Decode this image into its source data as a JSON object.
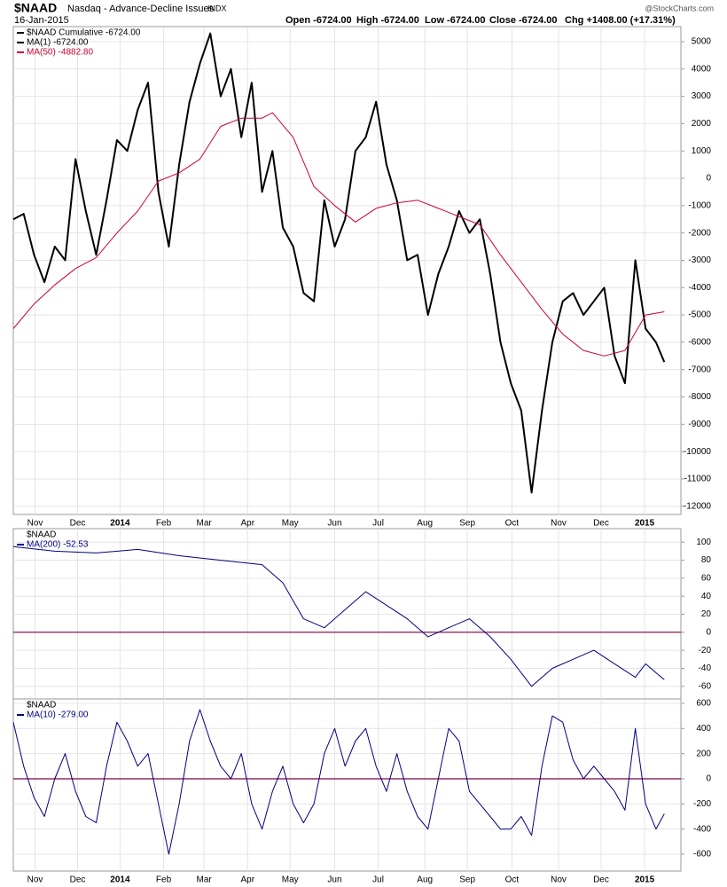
{
  "header": {
    "symbol": "$NAAD",
    "name": "Nasdaq - Advance-Decline Issues",
    "exchange": "INDX",
    "date": "16-Jan-2015",
    "open": "Open -6724.00",
    "high": "High -6724.00",
    "low": "Low -6724.00",
    "close": "Close -6724.00",
    "chg": "Chg +1408.00 (+17.31%)",
    "source": "@StockCharts.com"
  },
  "chart_data": [
    {
      "type": "line",
      "legend_title": "$NAAD Cumulative -6724.00",
      "xlim": [
        0,
        64.4
      ],
      "ylim": [
        -12300,
        5550
      ],
      "xticks": [
        {
          "value": 2.1,
          "label": "Nov"
        },
        {
          "value": 6.2,
          "label": "Dec"
        },
        {
          "value": 10.3,
          "label": "2014"
        },
        {
          "value": 14.5,
          "label": "Feb"
        },
        {
          "value": 18.4,
          "label": "Mar"
        },
        {
          "value": 22.6,
          "label": "Apr"
        },
        {
          "value": 26.7,
          "label": "May"
        },
        {
          "value": 31.0,
          "label": "Jun"
        },
        {
          "value": 35.2,
          "label": "Jul"
        },
        {
          "value": 39.7,
          "label": "Aug"
        },
        {
          "value": 43.8,
          "label": "Sep"
        },
        {
          "value": 48.1,
          "label": "Oct"
        },
        {
          "value": 52.6,
          "label": "Nov"
        },
        {
          "value": 56.7,
          "label": "Dec"
        },
        {
          "value": 60.9,
          "label": "2015"
        }
      ],
      "yticks": [
        5000,
        4000,
        3000,
        2000,
        1000,
        0,
        -1000,
        -2000,
        -3000,
        -4000,
        -5000,
        -6000,
        -7000,
        -8000,
        -9000,
        -10000,
        -11000,
        -12000
      ],
      "grid": true,
      "series": [
        {
          "name": "MA(1) -6724.00",
          "color": "#000000",
          "width": 2,
          "x": [
            0,
            1,
            2,
            3,
            4,
            5,
            6,
            7,
            8,
            9,
            10,
            11,
            12,
            13,
            14,
            15,
            16,
            17,
            18,
            19,
            20,
            21,
            22,
            23,
            24,
            25,
            26,
            27,
            28,
            29,
            30,
            31,
            32,
            33,
            34,
            35,
            36,
            37,
            38,
            39,
            40,
            41,
            42,
            43,
            44,
            45,
            46,
            47,
            48,
            49,
            50,
            51,
            52,
            53,
            54,
            55,
            56,
            57,
            58,
            59,
            60,
            61,
            62,
            62.8
          ],
          "values": [
            -1500,
            -1300,
            -2800,
            -3800,
            -2500,
            -3000,
            700,
            -1200,
            -2800,
            -800,
            1400,
            1000,
            2500,
            3500,
            -500,
            -2500,
            500,
            2800,
            4200,
            5300,
            3000,
            4000,
            1500,
            3500,
            -500,
            1000,
            -1800,
            -2500,
            -4200,
            -4500,
            -800,
            -2500,
            -1500,
            1000,
            1500,
            2800,
            500,
            -800,
            -3000,
            -2800,
            -5000,
            -3500,
            -2500,
            -1200,
            -2000,
            -1500,
            -3500,
            -6000,
            -7500,
            -8500,
            -11500,
            -8500,
            -6000,
            -4500,
            -4200,
            -5000,
            -4500,
            -4000,
            -6500,
            -7500,
            -3000,
            -5500,
            -6000,
            -6724
          ]
        },
        {
          "name": "MA(50) -4882.80",
          "color": "#cc0033",
          "width": 1,
          "x": [
            0,
            2,
            4,
            6,
            8,
            10,
            12,
            14,
            16,
            18,
            20,
            22,
            24,
            25,
            27,
            29,
            31,
            33,
            35,
            37,
            39,
            41,
            43,
            45,
            47,
            49,
            51,
            53,
            55,
            57,
            59,
            61,
            62.8
          ],
          "values": [
            -5500,
            -4600,
            -3900,
            -3300,
            -2900,
            -2000,
            -1200,
            -100,
            200,
            700,
            1900,
            2200,
            2200,
            2400,
            1500,
            -300,
            -1000,
            -1600,
            -1100,
            -900,
            -800,
            -1100,
            -1400,
            -1700,
            -2800,
            -3800,
            -4800,
            -5700,
            -6300,
            -6500,
            -6300,
            -5000,
            -4882.8
          ]
        }
      ]
    },
    {
      "type": "line",
      "legend_title": "$NAAD",
      "xlim": [
        0,
        64.4
      ],
      "ylim": [
        -74,
        115
      ],
      "yticks": [
        100,
        80,
        60,
        40,
        20,
        0,
        -20,
        -40,
        -60
      ],
      "grid": true,
      "hline": 0,
      "series": [
        {
          "name": "MA(200) -52.53",
          "color": "#000080",
          "width": 1,
          "x": [
            0,
            4,
            8,
            12,
            16,
            20,
            24,
            26,
            28,
            30,
            32,
            34,
            36,
            38,
            40,
            42,
            44,
            46,
            48,
            50,
            52,
            54,
            56,
            58,
            60,
            61,
            62,
            62.8
          ],
          "values": [
            95,
            90,
            88,
            92,
            85,
            80,
            75,
            55,
            15,
            5,
            25,
            45,
            30,
            15,
            -5,
            5,
            15,
            -5,
            -30,
            -60,
            -40,
            -30,
            -20,
            -35,
            -50,
            -35,
            -45,
            -52.53
          ]
        }
      ]
    },
    {
      "type": "line",
      "legend_title": "$NAAD",
      "xlim": [
        0,
        64.4
      ],
      "ylim": [
        -734,
        635
      ],
      "xticks": [
        {
          "value": 2.1,
          "label": "Nov"
        },
        {
          "value": 6.2,
          "label": "Dec"
        },
        {
          "value": 10.3,
          "label": "2014"
        },
        {
          "value": 14.5,
          "label": "Feb"
        },
        {
          "value": 18.4,
          "label": "Mar"
        },
        {
          "value": 22.6,
          "label": "Apr"
        },
        {
          "value": 26.7,
          "label": "May"
        },
        {
          "value": 31.0,
          "label": "Jun"
        },
        {
          "value": 35.2,
          "label": "Jul"
        },
        {
          "value": 39.7,
          "label": "Aug"
        },
        {
          "value": 43.8,
          "label": "Sep"
        },
        {
          "value": 48.1,
          "label": "Oct"
        },
        {
          "value": 52.6,
          "label": "Nov"
        },
        {
          "value": 56.7,
          "label": "Dec"
        },
        {
          "value": 60.9,
          "label": "2015"
        }
      ],
      "yticks": [
        600,
        400,
        200,
        0,
        -200,
        -400,
        -600
      ],
      "grid": true,
      "hline": 0,
      "series": [
        {
          "name": "MA(10) -279.00",
          "color": "#000080",
          "width": 1,
          "x": [
            0,
            1,
            2,
            3,
            4,
            5,
            6,
            7,
            8,
            9,
            10,
            11,
            12,
            13,
            14,
            15,
            16,
            17,
            18,
            19,
            20,
            21,
            22,
            23,
            24,
            25,
            26,
            27,
            28,
            29,
            30,
            31,
            32,
            33,
            34,
            35,
            36,
            37,
            38,
            39,
            40,
            41,
            42,
            43,
            44,
            45,
            46,
            47,
            48,
            49,
            50,
            51,
            52,
            53,
            54,
            55,
            56,
            57,
            58,
            59,
            60,
            61,
            62,
            62.8
          ],
          "values": [
            450,
            100,
            -150,
            -300,
            0,
            200,
            -100,
            -300,
            -350,
            100,
            450,
            300,
            100,
            200,
            -200,
            -600,
            -200,
            300,
            550,
            300,
            100,
            0,
            200,
            -200,
            -400,
            -100,
            100,
            -200,
            -350,
            -200,
            200,
            400,
            100,
            300,
            400,
            100,
            -100,
            200,
            -100,
            -300,
            -400,
            0,
            400,
            300,
            -100,
            -200,
            -300,
            -400,
            -400,
            -300,
            -450,
            100,
            500,
            450,
            150,
            0,
            100,
            0,
            -100,
            -250,
            400,
            -200,
            -400,
            -279
          ]
        }
      ]
    }
  ]
}
